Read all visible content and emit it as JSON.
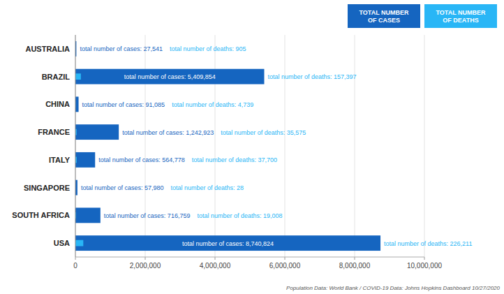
{
  "chart_data": {
    "type": "bar",
    "orientation": "horizontal",
    "categories": [
      "AUSTRALIA",
      "BRAZIL",
      "CHINA",
      "FRANCE",
      "ITALY",
      "SINGAPORE",
      "SOUTH AFRICA",
      "USA"
    ],
    "series": [
      {
        "name": "TOTAL NUMBER\nOF CASES",
        "color": "#1565c0",
        "values": [
          27541,
          5409854,
          91085,
          1242923,
          564778,
          57980,
          716759,
          8740824
        ],
        "value_labels": [
          "total number of cases: 27,541",
          "total number of cases: 5,409,854",
          "total number of cases: 91,085",
          "total number of cases: 1,242,923",
          "total number of cases: 564,778",
          "total number of cases: 57,980",
          "total number of cases: 716,759",
          "total number of cases: 8,740,824"
        ]
      },
      {
        "name": "TOTAL NUMBER\nOF DEATHS",
        "color": "#29b6f6",
        "values": [
          905,
          157397,
          4739,
          35575,
          37700,
          28,
          19008,
          226211
        ],
        "value_labels": [
          "total number of deaths: 905",
          "total number of deaths: 157,397",
          "total number of deaths: 4,739",
          "total number of deaths: 35,575",
          "total number of deaths: 37,700",
          "total number of deaths: 28",
          "total number of deaths: 19,008",
          "total number of deaths: 226,211"
        ]
      }
    ],
    "xlim": [
      0,
      10000000
    ],
    "xticks": [
      0,
      {
        "value": 2000000,
        "label": "2,000,000"
      },
      {
        "value": 4000000,
        "label": "4,000,000"
      },
      {
        "value": 6000000,
        "label": "6,000,000"
      },
      {
        "value": 8000000,
        "label": "8,000,000"
      },
      {
        "value": 10000000,
        "label": "10,000,000"
      }
    ],
    "grid": true,
    "legend": "top",
    "data_labels": true,
    "caption": "Population Data: World Bank / COVID-19 Data: Johns Hopkins Dashboard 10/27/2020"
  }
}
